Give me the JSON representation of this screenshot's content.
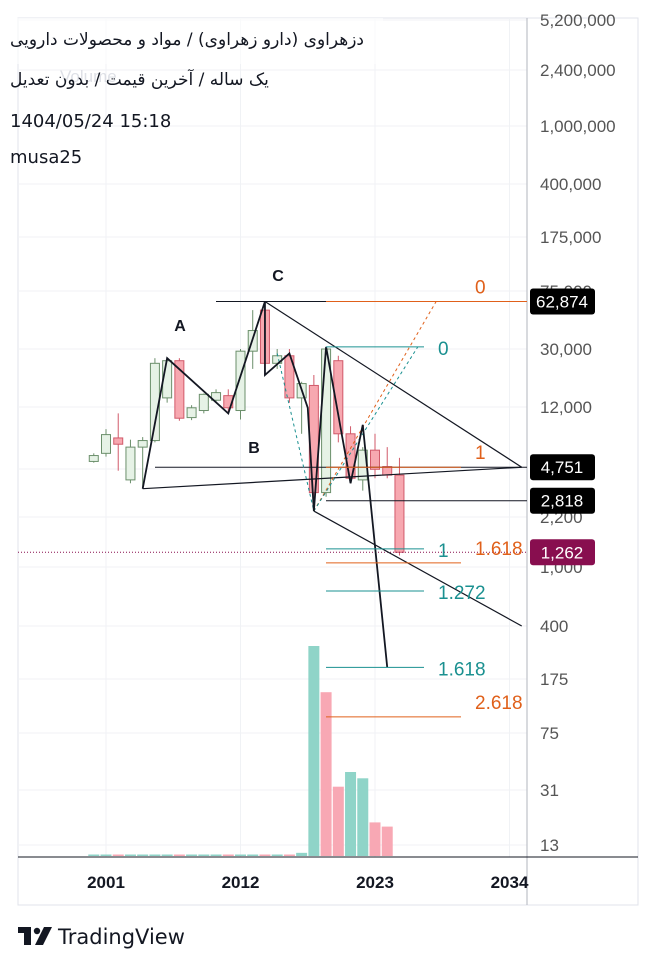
{
  "header": {
    "title": "دزهراوی (دارو زهراوی) / مواد و محصولات دارویی",
    "subtitle": "یک ساله / آخرین قیمت / بدون تعدیل",
    "datetime": "1404/05/24 15:18",
    "author": "musa25",
    "watermark": "Volume"
  },
  "brand": {
    "name": "TradingView",
    "icon": "tradingview-logo-icon"
  },
  "colors": {
    "up_candle_fill": "#e6f2e6",
    "up_candle_border": "#6b8f6b",
    "down_candle_fill": "#f7a8b0",
    "down_candle_border": "#d15a6a",
    "volume_up": "#8fd4c8",
    "volume_down": "#f8a8b4",
    "fib_orange": "#e0601a",
    "fib_teal": "#1a9090",
    "price_label_bg": "#000000",
    "last_price_bg": "#880e4f",
    "axis_text": "#555555"
  },
  "chart_data": {
    "type": "candlestick",
    "scale": "log",
    "x_axis": {
      "ticks": [
        "2001",
        "2012",
        "2023",
        "2034"
      ],
      "tick_years": [
        2001,
        2012,
        2023,
        2034
      ]
    },
    "y_axis": {
      "ticks": [
        "5,200,000",
        "2,400,000",
        "1,000,000",
        "400,000",
        "175,000",
        "75,000",
        "30,000",
        "12,000",
        "4,751",
        "2,818",
        "2,200",
        "1,262",
        "1,000",
        "400",
        "175",
        "75",
        "31",
        "13"
      ],
      "tick_values": [
        5200000,
        2400000,
        1000000,
        400000,
        175000,
        75000,
        30000,
        12000,
        4751,
        2818,
        2200,
        1262,
        1000,
        400,
        175,
        75,
        31,
        13
      ],
      "highlighted": [
        {
          "value": 62874,
          "label": "62,874",
          "style": "black"
        },
        {
          "value": 4751,
          "label": "4,751",
          "style": "black"
        },
        {
          "value": 2818,
          "label": "2,818",
          "style": "black"
        },
        {
          "value": 1262,
          "label": "1,262",
          "style": "last"
        }
      ]
    },
    "candles": [
      {
        "year": 2000.0,
        "open": 5200,
        "high": 5900,
        "low": 5100,
        "close": 5700
      },
      {
        "year": 2001.0,
        "open": 5900,
        "high": 8600,
        "low": 5600,
        "close": 7900
      },
      {
        "year": 2002.0,
        "open": 7500,
        "high": 11000,
        "low": 4500,
        "close": 6800
      },
      {
        "year": 2003.0,
        "open": 3900,
        "high": 7300,
        "low": 3700,
        "close": 6500
      },
      {
        "year": 2004.0,
        "open": 6500,
        "high": 7600,
        "low": 3400,
        "close": 7200
      },
      {
        "year": 2005.0,
        "open": 7200,
        "high": 26000,
        "low": 7000,
        "close": 24000
      },
      {
        "year": 2006.0,
        "open": 14000,
        "high": 26000,
        "low": 13000,
        "close": 25000
      },
      {
        "year": 2007.0,
        "open": 25000,
        "high": 26000,
        "low": 9800,
        "close": 10200
      },
      {
        "year": 2008.0,
        "open": 10300,
        "high": 12500,
        "low": 9900,
        "close": 12000
      },
      {
        "year": 2009.0,
        "open": 11500,
        "high": 15000,
        "low": 11000,
        "close": 14800
      },
      {
        "year": 2010.0,
        "open": 13500,
        "high": 16000,
        "low": 13000,
        "close": 15200
      },
      {
        "year": 2011.0,
        "open": 14500,
        "high": 16000,
        "low": 11000,
        "close": 12000
      },
      {
        "year": 2012.0,
        "open": 11500,
        "high": 30000,
        "low": 10000,
        "close": 29000
      },
      {
        "year": 2013.0,
        "open": 29000,
        "high": 55000,
        "low": 22000,
        "close": 40000
      },
      {
        "year": 2014.0,
        "open": 55000,
        "high": 62874,
        "low": 20000,
        "close": 24000
      },
      {
        "year": 2015.0,
        "open": 24000,
        "high": 30000,
        "low": 22000,
        "close": 27000
      },
      {
        "year": 2016.0,
        "open": 27000,
        "high": 30000,
        "low": 13000,
        "close": 14000
      },
      {
        "year": 2017.0,
        "open": 14000,
        "high": 18000,
        "low": 8000,
        "close": 17500
      },
      {
        "year": 2018.0,
        "open": 17000,
        "high": 20000,
        "low": 2400,
        "close": 3200
      },
      {
        "year": 2019.0,
        "open": 3200,
        "high": 31000,
        "low": 3000,
        "close": 30000
      },
      {
        "year": 2020.0,
        "open": 25000,
        "high": 27000,
        "low": 7000,
        "close": 8000
      },
      {
        "year": 2021.0,
        "open": 8000,
        "high": 9000,
        "low": 3700,
        "close": 4000
      },
      {
        "year": 2022.0,
        "open": 3900,
        "high": 6500,
        "low": 3300,
        "close": 6200
      },
      {
        "year": 2023.0,
        "open": 6200,
        "high": 8000,
        "low": 4000,
        "close": 4600
      },
      {
        "year": 2024.0,
        "open": 4800,
        "high": 6500,
        "low": 4000,
        "close": 4200
      },
      {
        "year": 2025.0,
        "open": 4200,
        "high": 5500,
        "low": 1200,
        "close": 1262
      }
    ],
    "volume": {
      "scale_hint": "relative",
      "bars": [
        {
          "year": 2000.0,
          "value": 0.004,
          "dir": "up"
        },
        {
          "year": 2001.0,
          "value": 0.004,
          "dir": "up"
        },
        {
          "year": 2002.0,
          "value": 0.004,
          "dir": "down"
        },
        {
          "year": 2003.0,
          "value": 0.004,
          "dir": "up"
        },
        {
          "year": 2004.0,
          "value": 0.004,
          "dir": "up"
        },
        {
          "year": 2005.0,
          "value": 0.004,
          "dir": "up"
        },
        {
          "year": 2006.0,
          "value": 0.004,
          "dir": "up"
        },
        {
          "year": 2007.0,
          "value": 0.004,
          "dir": "down"
        },
        {
          "year": 2008.0,
          "value": 0.004,
          "dir": "up"
        },
        {
          "year": 2009.0,
          "value": 0.004,
          "dir": "up"
        },
        {
          "year": 2010.0,
          "value": 0.004,
          "dir": "up"
        },
        {
          "year": 2011.0,
          "value": 0.004,
          "dir": "down"
        },
        {
          "year": 2012.0,
          "value": 0.004,
          "dir": "up"
        },
        {
          "year": 2013.0,
          "value": 0.004,
          "dir": "up"
        },
        {
          "year": 2014.0,
          "value": 0.004,
          "dir": "down"
        },
        {
          "year": 2015.0,
          "value": 0.004,
          "dir": "up"
        },
        {
          "year": 2016.0,
          "value": 0.004,
          "dir": "down"
        },
        {
          "year": 2017.0,
          "value": 0.015,
          "dir": "up"
        },
        {
          "year": 2018.0,
          "value": 1.0,
          "dir": "up"
        },
        {
          "year": 2019.0,
          "value": 0.78,
          "dir": "down"
        },
        {
          "year": 2020.0,
          "value": 0.33,
          "dir": "down"
        },
        {
          "year": 2021.0,
          "value": 0.4,
          "dir": "up"
        },
        {
          "year": 2022.0,
          "value": 0.37,
          "dir": "up"
        },
        {
          "year": 2023.0,
          "value": 0.16,
          "dir": "down"
        },
        {
          "year": 2024.0,
          "value": 0.14,
          "dir": "down"
        }
      ]
    },
    "wave_points": [
      {
        "label": "A",
        "year": 2006.0,
        "value": 26000
      },
      {
        "label": "B",
        "year": 2004.0,
        "value": 3400
      },
      {
        "label": "C",
        "year": 2014.0,
        "value": 62874
      }
    ],
    "zigzag": [
      {
        "year": 2004.0,
        "value": 3400
      },
      {
        "year": 2006.0,
        "value": 26000
      },
      {
        "year": 2011.0,
        "value": 11000
      },
      {
        "year": 2014.0,
        "value": 62874
      },
      {
        "year": 2014.0,
        "value": 20000
      },
      {
        "year": 2016.0,
        "value": 28000
      },
      {
        "year": 2017.5,
        "value": 12000
      },
      {
        "year": 2018.0,
        "value": 2400
      },
      {
        "year": 2019.0,
        "value": 31000
      },
      {
        "year": 2021.0,
        "value": 3700
      },
      {
        "year": 2022.0,
        "value": 9200
      },
      {
        "year": 2024.0,
        "value": 210
      }
    ],
    "trend_lines": [
      {
        "from": {
          "year": 2014.0,
          "value": 62874
        },
        "to": {
          "year": 2035.0,
          "value": 4751
        }
      },
      {
        "from": {
          "year": 2018.0,
          "value": 2400
        },
        "to": {
          "year": 2035.0,
          "value": 400
        }
      },
      {
        "from": {
          "year": 2004.0,
          "value": 3400
        },
        "to": {
          "year": 2035.0,
          "value": 4751
        }
      }
    ],
    "dashed_lines": [
      {
        "color": "orange",
        "from": {
          "year": 2018.0,
          "value": 2400
        },
        "to": {
          "year": 2028.0,
          "value": 62874
        }
      },
      {
        "color": "teal",
        "from": {
          "year": 2015.0,
          "value": 28000
        },
        "to": {
          "year": 2018.0,
          "value": 2400
        }
      },
      {
        "color": "teal",
        "from": {
          "year": 2018.0,
          "value": 2400
        },
        "to": {
          "year": 2026.5,
          "value": 31000
        }
      }
    ],
    "fib_orange": [
      {
        "label": "0",
        "value": 62874
      },
      {
        "label": "1",
        "value": 4751
      },
      {
        "label": "1.618",
        "value": 1070
      },
      {
        "label": "2.618",
        "value": 97
      }
    ],
    "fib_teal": [
      {
        "label": "0",
        "value": 31000
      },
      {
        "label": "1",
        "value": 1330
      },
      {
        "label": "1.272",
        "value": 690
      },
      {
        "label": "1.618",
        "value": 210
      }
    ]
  }
}
